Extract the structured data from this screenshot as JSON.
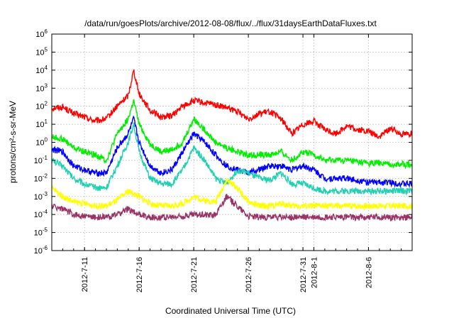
{
  "chart_data": {
    "type": "line",
    "title": "/data/run/goesPlots/archive/2012-08-08/flux/../flux/31daysEarthDataFluxes.txt",
    "xlabel": "Coordinated Universal Time (UTC)",
    "ylabel": "protons/cm²-s-sr-MeV",
    "y_scale": "log",
    "ylim_exponent": [
      -6,
      6
    ],
    "xlim": [
      "2012-07-08",
      "2012-08-10"
    ],
    "grid": true,
    "x_ticks": [
      "2012-7-11",
      "2012-7-16",
      "2012-7-21",
      "2012-7-26",
      "2012-7-31",
      "2012-8-1",
      "2012-8-6"
    ],
    "x_tick_dates": [
      "2012-07-11",
      "2012-07-16",
      "2012-07-21",
      "2012-07-26",
      "2012-07-31",
      "2012-08-01",
      "2012-08-06"
    ],
    "y_ticks": [
      {
        "base": "10",
        "exp": "-6"
      },
      {
        "base": "10",
        "exp": "-5"
      },
      {
        "base": "10",
        "exp": "-4"
      },
      {
        "base": "10",
        "exp": "-3"
      },
      {
        "base": "10",
        "exp": "-2"
      },
      {
        "base": "10",
        "exp": "-1"
      },
      {
        "base": "10",
        "exp": "0"
      },
      {
        "base": "10",
        "exp": "1"
      },
      {
        "base": "10",
        "exp": "2"
      },
      {
        "base": "10",
        "exp": "3"
      },
      {
        "base": "10",
        "exp": "4"
      },
      {
        "base": "10",
        "exp": "5"
      },
      {
        "base": "10",
        "exp": "6"
      }
    ],
    "series": [
      {
        "color": "#ff0000",
        "points": [
          [
            "2012-07-08",
            80
          ],
          [
            "2012-07-09",
            90
          ],
          [
            "2012-07-10",
            40
          ],
          [
            "2012-07-11",
            25
          ],
          [
            "2012-07-12",
            15
          ],
          [
            "2012-07-13",
            20
          ],
          [
            "2012-07-14",
            100
          ],
          [
            "2012-07-15",
            400
          ],
          [
            "2012-07-15T12",
            10000
          ],
          [
            "2012-07-16",
            500
          ],
          [
            "2012-07-17",
            60
          ],
          [
            "2012-07-18",
            25
          ],
          [
            "2012-07-19",
            30
          ],
          [
            "2012-07-20",
            100
          ],
          [
            "2012-07-21",
            200
          ],
          [
            "2012-07-22",
            150
          ],
          [
            "2012-07-23",
            120
          ],
          [
            "2012-07-24",
            80
          ],
          [
            "2012-07-25",
            50
          ],
          [
            "2012-07-26",
            20
          ],
          [
            "2012-07-27",
            40
          ],
          [
            "2012-07-28",
            50
          ],
          [
            "2012-07-29",
            20
          ],
          [
            "2012-07-30",
            3
          ],
          [
            "2012-07-31",
            10
          ],
          [
            "2012-08-01",
            15
          ],
          [
            "2012-08-02",
            5
          ],
          [
            "2012-08-03",
            3
          ],
          [
            "2012-08-04",
            8
          ],
          [
            "2012-08-05",
            5
          ],
          [
            "2012-08-06",
            4
          ],
          [
            "2012-08-07",
            2
          ],
          [
            "2012-08-08",
            6
          ],
          [
            "2012-08-09",
            3
          ],
          [
            "2012-08-10",
            3
          ]
        ]
      },
      {
        "color": "#00ee00",
        "points": [
          [
            "2012-07-08",
            2
          ],
          [
            "2012-07-09",
            1.5
          ],
          [
            "2012-07-10",
            0.5
          ],
          [
            "2012-07-11",
            0.3
          ],
          [
            "2012-07-12",
            0.2
          ],
          [
            "2012-07-13",
            0.1
          ],
          [
            "2012-07-14",
            3
          ],
          [
            "2012-07-15",
            20
          ],
          [
            "2012-07-15T12",
            200
          ],
          [
            "2012-07-16",
            10
          ],
          [
            "2012-07-17",
            0.8
          ],
          [
            "2012-07-18",
            0.3
          ],
          [
            "2012-07-19",
            0.4
          ],
          [
            "2012-07-20",
            1
          ],
          [
            "2012-07-21",
            20
          ],
          [
            "2012-07-22",
            5
          ],
          [
            "2012-07-23",
            1
          ],
          [
            "2012-07-24",
            0.5
          ],
          [
            "2012-07-25",
            0.3
          ],
          [
            "2012-07-26",
            0.2
          ],
          [
            "2012-07-27",
            0.2
          ],
          [
            "2012-07-28",
            0.2
          ],
          [
            "2012-07-29",
            0.3
          ],
          [
            "2012-07-30",
            0.1
          ],
          [
            "2012-07-31",
            0.3
          ],
          [
            "2012-08-01",
            0.2
          ],
          [
            "2012-08-02",
            0.1
          ],
          [
            "2012-08-03",
            0.1
          ],
          [
            "2012-08-04",
            0.1
          ],
          [
            "2012-08-05",
            0.08
          ],
          [
            "2012-08-06",
            0.07
          ],
          [
            "2012-08-07",
            0.07
          ],
          [
            "2012-08-08",
            0.06
          ],
          [
            "2012-08-09",
            0.06
          ],
          [
            "2012-08-10",
            0.06
          ]
        ]
      },
      {
        "color": "#0000ff",
        "points": [
          [
            "2012-07-08",
            0.4
          ],
          [
            "2012-07-09",
            0.3
          ],
          [
            "2012-07-10",
            0.05
          ],
          [
            "2012-07-11",
            0.03
          ],
          [
            "2012-07-12",
            0.02
          ],
          [
            "2012-07-13",
            0.02
          ],
          [
            "2012-07-14",
            0.5
          ],
          [
            "2012-07-15",
            3
          ],
          [
            "2012-07-15T12",
            20
          ],
          [
            "2012-07-16",
            1
          ],
          [
            "2012-07-17",
            0.05
          ],
          [
            "2012-07-18",
            0.02
          ],
          [
            "2012-07-19",
            0.03
          ],
          [
            "2012-07-20",
            0.3
          ],
          [
            "2012-07-21",
            3
          ],
          [
            "2012-07-22",
            1
          ],
          [
            "2012-07-23",
            0.2
          ],
          [
            "2012-07-24",
            0.05
          ],
          [
            "2012-07-25",
            0.03
          ],
          [
            "2012-07-26",
            0.02
          ],
          [
            "2012-07-27",
            0.03
          ],
          [
            "2012-07-28",
            0.05
          ],
          [
            "2012-07-29",
            0.05
          ],
          [
            "2012-07-30",
            0.03
          ],
          [
            "2012-07-31",
            0.05
          ],
          [
            "2012-08-01",
            0.03
          ],
          [
            "2012-08-02",
            0.01
          ],
          [
            "2012-08-03",
            0.01
          ],
          [
            "2012-08-04",
            0.01
          ],
          [
            "2012-08-05",
            0.008
          ],
          [
            "2012-08-06",
            0.006
          ],
          [
            "2012-08-07",
            0.006
          ],
          [
            "2012-08-08",
            0.006
          ],
          [
            "2012-08-09",
            0.005
          ],
          [
            "2012-08-10",
            0.005
          ]
        ]
      },
      {
        "color": "#20d0b0",
        "points": [
          [
            "2012-07-08",
            0.1
          ],
          [
            "2012-07-09",
            0.05
          ],
          [
            "2012-07-10",
            0.01
          ],
          [
            "2012-07-11",
            0.005
          ],
          [
            "2012-07-12",
            0.003
          ],
          [
            "2012-07-13",
            0.003
          ],
          [
            "2012-07-14",
            0.05
          ],
          [
            "2012-07-15",
            1
          ],
          [
            "2012-07-15T12",
            10
          ],
          [
            "2012-07-16",
            0.3
          ],
          [
            "2012-07-17",
            0.01
          ],
          [
            "2012-07-18",
            0.005
          ],
          [
            "2012-07-19",
            0.005
          ],
          [
            "2012-07-20",
            0.03
          ],
          [
            "2012-07-21",
            0.5
          ],
          [
            "2012-07-22",
            0.1
          ],
          [
            "2012-07-23",
            0.01
          ],
          [
            "2012-07-24",
            0.005
          ],
          [
            "2012-07-25",
            0.03
          ],
          [
            "2012-07-26",
            0.02
          ],
          [
            "2012-07-27",
            0.01
          ],
          [
            "2012-07-28",
            0.008
          ],
          [
            "2012-07-29",
            0.02
          ],
          [
            "2012-07-30",
            0.005
          ],
          [
            "2012-07-31",
            0.005
          ],
          [
            "2012-08-01",
            0.003
          ],
          [
            "2012-08-02",
            0.002
          ],
          [
            "2012-08-03",
            0.002
          ],
          [
            "2012-08-04",
            0.002
          ],
          [
            "2012-08-05",
            0.002
          ],
          [
            "2012-08-06",
            0.002
          ],
          [
            "2012-08-07",
            0.002
          ],
          [
            "2012-08-08",
            0.002
          ],
          [
            "2012-08-09",
            0.002
          ],
          [
            "2012-08-10",
            0.002
          ]
        ]
      },
      {
        "color": "#ffff00",
        "points": [
          [
            "2012-07-08",
            0.003
          ],
          [
            "2012-07-09",
            0.001
          ],
          [
            "2012-07-10",
            0.0005
          ],
          [
            "2012-07-11",
            0.0004
          ],
          [
            "2012-07-12",
            0.0003
          ],
          [
            "2012-07-13",
            0.0003
          ],
          [
            "2012-07-14",
            0.0006
          ],
          [
            "2012-07-15",
            0.002
          ],
          [
            "2012-07-16",
            0.001
          ],
          [
            "2012-07-17",
            0.0004
          ],
          [
            "2012-07-18",
            0.0003
          ],
          [
            "2012-07-19",
            0.0003
          ],
          [
            "2012-07-20",
            0.0004
          ],
          [
            "2012-07-21",
            0.001
          ],
          [
            "2012-07-22",
            0.0006
          ],
          [
            "2012-07-23",
            0.0005
          ],
          [
            "2012-07-24",
            0.008
          ],
          [
            "2012-07-25",
            0.003
          ],
          [
            "2012-07-26",
            0.0005
          ],
          [
            "2012-07-27",
            0.0003
          ],
          [
            "2012-07-28",
            0.0003
          ],
          [
            "2012-07-29",
            0.0004
          ],
          [
            "2012-07-30",
            0.0003
          ],
          [
            "2012-07-31",
            0.0003
          ],
          [
            "2012-08-01",
            0.0003
          ],
          [
            "2012-08-02",
            0.0003
          ],
          [
            "2012-08-03",
            0.0003
          ],
          [
            "2012-08-04",
            0.0003
          ],
          [
            "2012-08-05",
            0.0003
          ],
          [
            "2012-08-06",
            0.0003
          ],
          [
            "2012-08-07",
            0.0003
          ],
          [
            "2012-08-08",
            0.0003
          ],
          [
            "2012-08-09",
            0.0003
          ],
          [
            "2012-08-10",
            0.0003
          ]
        ]
      },
      {
        "color": "#993366",
        "points": [
          [
            "2012-07-08",
            0.0003
          ],
          [
            "2012-07-09",
            0.0002
          ],
          [
            "2012-07-10",
            0.0001
          ],
          [
            "2012-07-11",
            8e-05
          ],
          [
            "2012-07-12",
            7e-05
          ],
          [
            "2012-07-13",
            7e-05
          ],
          [
            "2012-07-14",
            0.0001
          ],
          [
            "2012-07-15",
            0.0002
          ],
          [
            "2012-07-16",
            0.0001
          ],
          [
            "2012-07-17",
            7e-05
          ],
          [
            "2012-07-18",
            7e-05
          ],
          [
            "2012-07-19",
            7e-05
          ],
          [
            "2012-07-20",
            8e-05
          ],
          [
            "2012-07-21",
            0.0001
          ],
          [
            "2012-07-22",
            0.0001
          ],
          [
            "2012-07-23",
            0.0001
          ],
          [
            "2012-07-24",
            0.001
          ],
          [
            "2012-07-25",
            0.0003
          ],
          [
            "2012-07-26",
            8e-05
          ],
          [
            "2012-07-27",
            7e-05
          ],
          [
            "2012-07-28",
            7e-05
          ],
          [
            "2012-07-29",
            7e-05
          ],
          [
            "2012-07-30",
            7e-05
          ],
          [
            "2012-07-31",
            7e-05
          ],
          [
            "2012-08-01",
            7e-05
          ],
          [
            "2012-08-02",
            7e-05
          ],
          [
            "2012-08-03",
            7e-05
          ],
          [
            "2012-08-04",
            7e-05
          ],
          [
            "2012-08-05",
            7e-05
          ],
          [
            "2012-08-06",
            7e-05
          ],
          [
            "2012-08-07",
            7e-05
          ],
          [
            "2012-08-08",
            7e-05
          ],
          [
            "2012-08-09",
            7e-05
          ],
          [
            "2012-08-10",
            7e-05
          ]
        ]
      }
    ]
  }
}
